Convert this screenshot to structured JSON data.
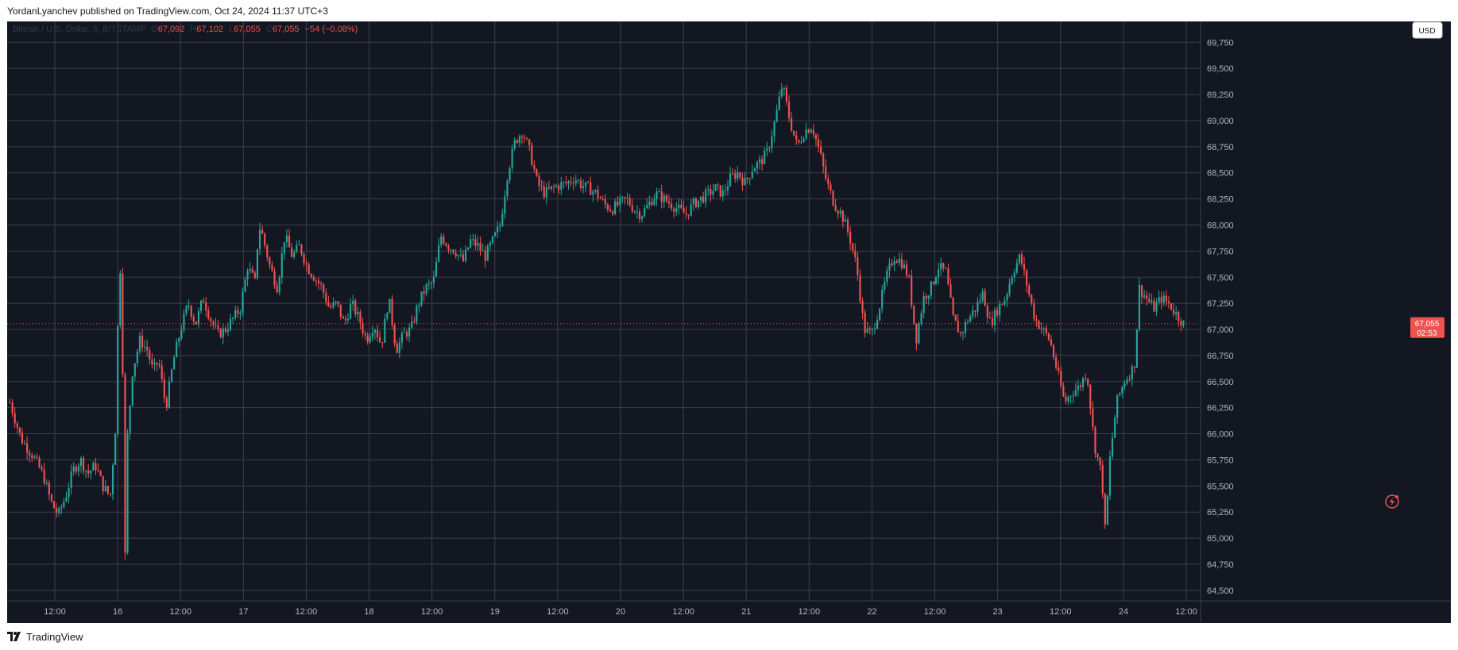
{
  "header": {
    "published_by": "YordanLyanchev published on TradingView.com, Oct 24, 2024 11:37 UTC+3"
  },
  "footer": {
    "brand": "TradingView"
  },
  "legend": {
    "symbol": "Bitcoin / U.S. Dollar, 5, BITSTAMP",
    "ohlc": [
      {
        "key": "O",
        "value": "67,092"
      },
      {
        "key": "H",
        "value": "67,102"
      },
      {
        "key": "L",
        "value": "67,055"
      },
      {
        "key": "C",
        "value": "67,055"
      }
    ],
    "change": "−54 (−0.08%)"
  },
  "currency_button": "USD",
  "price_tag": {
    "price": "67,055",
    "countdown": "02:53"
  },
  "colors": {
    "background": "#131722",
    "grid": "#3b3f4b",
    "up": "#26a69a",
    "down": "#ef5350",
    "axis_text": "#b2b5be",
    "price_tag": "#ef5350"
  },
  "chart_data": {
    "type": "candlestick",
    "symbol": "BTC/USD",
    "exchange": "BITSTAMP",
    "interval": "5",
    "ylim": [
      64400,
      69950
    ],
    "y_ticks": [
      "69,750",
      "69,500",
      "69,250",
      "69,000",
      "68,750",
      "68,500",
      "68,250",
      "68,000",
      "67,750",
      "67,500",
      "67,250",
      "67,000",
      "66,750",
      "66,500",
      "66,250",
      "66,000",
      "65,750",
      "65,500",
      "65,250",
      "65,000",
      "64,750",
      "64,500"
    ],
    "x_ticks": [
      "12:00",
      "16",
      "12:00",
      "17",
      "12:00",
      "18",
      "12:00",
      "19",
      "12:00",
      "20",
      "12:00",
      "21",
      "12:00",
      "22",
      "12:00",
      "23",
      "12:00",
      "24",
      "12:00"
    ],
    "grid": true,
    "last_price": 67055,
    "price_path": [
      [
        0,
        66300
      ],
      [
        3,
        65950
      ],
      [
        6,
        65800
      ],
      [
        9,
        65600
      ],
      [
        11,
        65350
      ],
      [
        13,
        65220
      ],
      [
        15,
        65400
      ],
      [
        17,
        65650
      ],
      [
        19,
        65750
      ],
      [
        21,
        65620
      ],
      [
        23,
        65700
      ],
      [
        25,
        65500
      ],
      [
        27,
        65400
      ],
      [
        28.5,
        66100
      ],
      [
        29.5,
        67850
      ],
      [
        30.5,
        66400
      ],
      [
        31,
        64820
      ],
      [
        31.5,
        65900
      ],
      [
        33,
        66600
      ],
      [
        35,
        66900
      ],
      [
        37,
        66800
      ],
      [
        38.5,
        66600
      ],
      [
        40,
        66700
      ],
      [
        42,
        66250
      ],
      [
        44,
        66700
      ],
      [
        46,
        67000
      ],
      [
        48,
        67250
      ],
      [
        50,
        67050
      ],
      [
        52,
        67300
      ],
      [
        54,
        67100
      ],
      [
        56,
        66950
      ],
      [
        58,
        67000
      ],
      [
        60,
        67100
      ],
      [
        62,
        67200
      ],
      [
        64,
        67600
      ],
      [
        66,
        67450
      ],
      [
        67,
        68000
      ],
      [
        68,
        67900
      ],
      [
        70,
        67600
      ],
      [
        72,
        67400
      ],
      [
        74,
        67900
      ],
      [
        76,
        67700
      ],
      [
        78,
        67800
      ],
      [
        80,
        67600
      ],
      [
        82,
        67500
      ],
      [
        84,
        67400
      ],
      [
        86,
        67200
      ],
      [
        88,
        67250
      ],
      [
        90,
        67050
      ],
      [
        92,
        67250
      ],
      [
        94,
        67100
      ],
      [
        96,
        66900
      ],
      [
        98,
        67050
      ],
      [
        100,
        66850
      ],
      [
        102,
        67300
      ],
      [
        104,
        66800
      ],
      [
        106,
        66950
      ],
      [
        108,
        67000
      ],
      [
        110,
        67250
      ],
      [
        112,
        67400
      ],
      [
        114,
        67450
      ],
      [
        116,
        67900
      ],
      [
        118,
        67800
      ],
      [
        120,
        67750
      ],
      [
        122,
        67650
      ],
      [
        124,
        67850
      ],
      [
        126,
        67800
      ],
      [
        128,
        67700
      ],
      [
        130,
        67850
      ],
      [
        132,
        68000
      ],
      [
        134,
        68500
      ],
      [
        136,
        68800
      ],
      [
        138,
        68900
      ],
      [
        140,
        68700
      ],
      [
        142,
        68400
      ],
      [
        144,
        68300
      ],
      [
        146,
        68350
      ],
      [
        148,
        68380
      ],
      [
        150,
        68400
      ],
      [
        152,
        68450
      ],
      [
        154,
        68380
      ],
      [
        156,
        68350
      ],
      [
        158,
        68300
      ],
      [
        160,
        68200
      ],
      [
        162,
        68150
      ],
      [
        164,
        68200
      ],
      [
        166,
        68250
      ],
      [
        168,
        68150
      ],
      [
        170,
        68100
      ],
      [
        172,
        68200
      ],
      [
        174,
        68300
      ],
      [
        176,
        68250
      ],
      [
        178,
        68200
      ],
      [
        180,
        68150
      ],
      [
        182,
        68100
      ],
      [
        184,
        68200
      ],
      [
        186,
        68250
      ],
      [
        188,
        68300
      ],
      [
        190,
        68350
      ],
      [
        192,
        68300
      ],
      [
        194,
        68450
      ],
      [
        196,
        68500
      ],
      [
        198,
        68400
      ],
      [
        200,
        68550
      ],
      [
        202,
        68600
      ],
      [
        204,
        68700
      ],
      [
        206,
        69000
      ],
      [
        208,
        69350
      ],
      [
        210,
        69000
      ],
      [
        212,
        68750
      ],
      [
        214,
        68900
      ],
      [
        216,
        68950
      ],
      [
        218,
        68700
      ],
      [
        220,
        68400
      ],
      [
        222,
        68200
      ],
      [
        224,
        68100
      ],
      [
        226,
        67900
      ],
      [
        228,
        67600
      ],
      [
        230,
        67000
      ],
      [
        232,
        66950
      ],
      [
        234,
        67200
      ],
      [
        236,
        67500
      ],
      [
        238,
        67700
      ],
      [
        240,
        67650
      ],
      [
        242,
        67500
      ],
      [
        244,
        66900
      ],
      [
        246,
        67300
      ],
      [
        248,
        67400
      ],
      [
        250,
        67600
      ],
      [
        252,
        67550
      ],
      [
        254,
        67100
      ],
      [
        256,
        66950
      ],
      [
        258,
        67100
      ],
      [
        260,
        67200
      ],
      [
        262,
        67350
      ],
      [
        264,
        67050
      ],
      [
        266,
        67200
      ],
      [
        268,
        67300
      ],
      [
        270,
        67550
      ],
      [
        272,
        67700
      ],
      [
        274,
        67400
      ],
      [
        276,
        67100
      ],
      [
        278,
        67000
      ],
      [
        280,
        66900
      ],
      [
        282,
        66600
      ],
      [
        284,
        66300
      ],
      [
        286,
        66400
      ],
      [
        288,
        66450
      ],
      [
        290,
        66600
      ],
      [
        292,
        65900
      ],
      [
        294,
        65600
      ],
      [
        295,
        65020
      ],
      [
        296,
        65700
      ],
      [
        298,
        66300
      ],
      [
        300,
        66500
      ],
      [
        302,
        66600
      ],
      [
        303,
        66700
      ],
      [
        304,
        67400
      ],
      [
        306,
        67300
      ],
      [
        308,
        67200
      ],
      [
        310,
        67300
      ],
      [
        312,
        67250
      ],
      [
        314,
        67150
      ],
      [
        316,
        67055
      ]
    ]
  }
}
